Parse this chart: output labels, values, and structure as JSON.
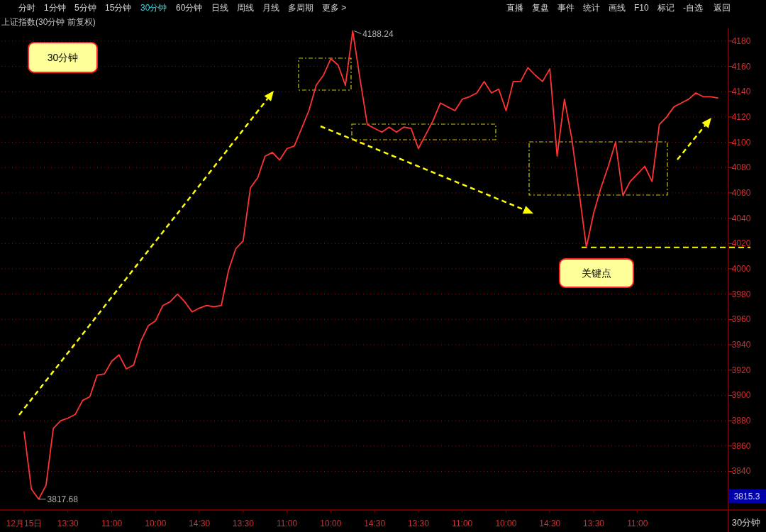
{
  "chart_data": {
    "type": "line",
    "title": "上证指数(30分钟 前复权)",
    "categories": [
      "12月15日",
      null,
      null,
      null,
      null,
      null,
      "13:30",
      null,
      null,
      null,
      null,
      null,
      "11:00",
      null,
      null,
      null,
      null,
      null,
      "10:00",
      null,
      null,
      null,
      null,
      null,
      "14:30",
      null,
      null,
      null,
      null,
      null,
      "13:30",
      null,
      null,
      null,
      null,
      null,
      "11:00",
      null,
      null,
      null,
      null,
      null,
      "10:00",
      null,
      null,
      null,
      null,
      null,
      "14:30",
      null,
      null,
      null,
      null,
      null,
      "13:30",
      null,
      null,
      null,
      null,
      null,
      "11:00",
      null,
      null,
      null,
      null,
      null,
      "10:00",
      null,
      null,
      null,
      null,
      null,
      "14:30",
      null,
      null,
      null,
      null,
      null,
      "13:30",
      null,
      null,
      null,
      null,
      null,
      "11:00",
      null,
      null,
      null,
      null,
      null,
      null,
      null,
      null,
      null,
      null,
      null
    ],
    "series": [
      {
        "color": "#ff3333",
        "values": [
          3871,
          3826,
          3818,
          3829,
          3874,
          3880,
          3882,
          3885,
          3896,
          3899,
          3916,
          3917,
          3927,
          3932,
          3921,
          3924,
          3943,
          3955,
          3959,
          3971,
          3974,
          3980,
          3974,
          3966,
          3969,
          3971,
          3970,
          3971,
          3999,
          4016,
          4022,
          4064,
          4072,
          4089,
          4092,
          4086,
          4095,
          4097,
          4111,
          4125,
          4145,
          4153,
          4166,
          4161,
          4145,
          4188,
          4150,
          4114,
          4111,
          4108,
          4112,
          4108,
          4112,
          4111,
          4095,
          4106,
          4117,
          4131,
          4128,
          4125,
          4134,
          4136,
          4139,
          4148,
          4139,
          4142,
          4125,
          4148,
          4148,
          4159,
          4153,
          4148,
          4158,
          4089,
          4134,
          4103,
          4061,
          4017,
          4044,
          4064,
          4081,
          4100,
          4058,
          4069,
          4075,
          4081,
          4069,
          4114,
          4120,
          4128,
          4131,
          4134,
          4139,
          4136,
          4136,
          4135
        ]
      }
    ],
    "ylim": [
      3810,
      4190
    ],
    "yticks": [
      3840,
      3860,
      3880,
      3900,
      3920,
      3940,
      3960,
      3980,
      4000,
      4020,
      4040,
      4060,
      4080,
      4100,
      4120,
      4140,
      4160,
      4180
    ],
    "grid": "y",
    "ref_lines": [
      {
        "axis": "y",
        "value": 4017,
        "color": "#ffff00",
        "line_style": "dashed"
      }
    ],
    "annotations": [
      "4188.24",
      "3817.68",
      "30分钟",
      "关键点",
      "3815.3",
      "30分钟",
      "分时",
      "1分钟",
      "5分钟",
      "15分钟",
      "30分钟",
      "60分钟",
      "日线",
      "周线",
      "月线",
      "多周期",
      "更多 >",
      "直播",
      "复盘",
      "事件",
      "统计",
      "画线",
      "F10",
      "标记",
      "-自选",
      "返回"
    ]
  }
}
